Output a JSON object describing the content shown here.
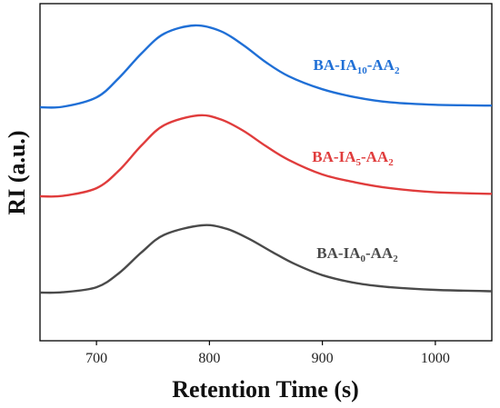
{
  "chart_data": {
    "type": "line",
    "xlabel": "Retention Time (s)",
    "ylabel": "RI (a.u.)",
    "xlim": [
      650,
      1050
    ],
    "xticks": [
      700,
      800,
      900,
      1000
    ],
    "y_ticks_shown": false,
    "grid": false,
    "legend": "inline labels next to curves",
    "series": [
      {
        "name": "BA-IA10-AA2",
        "label_base": "BA-IA",
        "label_sub1": "10",
        "label_mid": "-AA",
        "label_sub2": "2",
        "color": "#1f6fd6",
        "baseline": 0,
        "offset": 2.0,
        "peak_x": 787,
        "x": [
          650,
          670,
          700,
          720,
          740,
          760,
          787,
          810,
          830,
          850,
          870,
          900,
          930,
          960,
          1000,
          1050
        ],
        "y": [
          0.0,
          0.005,
          0.12,
          0.36,
          0.66,
          0.9,
          1.0,
          0.93,
          0.76,
          0.55,
          0.38,
          0.22,
          0.12,
          0.06,
          0.03,
          0.02
        ]
      },
      {
        "name": "BA-IA5-AA2",
        "label_base": "BA-IA",
        "label_sub1": "5",
        "label_mid": "-AA",
        "label_sub2": "2",
        "color": "#e03c3c",
        "offset": 1.0,
        "peak_x": 790,
        "x": [
          650,
          670,
          700,
          720,
          740,
          760,
          790,
          810,
          830,
          850,
          870,
          900,
          930,
          960,
          1000,
          1050
        ],
        "y": [
          0.0,
          0.005,
          0.1,
          0.32,
          0.63,
          0.88,
          1.0,
          0.95,
          0.81,
          0.62,
          0.45,
          0.27,
          0.17,
          0.1,
          0.05,
          0.03
        ]
      },
      {
        "name": "BA-IA0-AA2",
        "label_base": "BA-IA",
        "label_sub1": "0",
        "label_mid": "-AA",
        "label_sub2": "2",
        "color": "#4a4a4a",
        "offset": 0.0,
        "peak_x": 793,
        "x": [
          650,
          670,
          700,
          720,
          740,
          760,
          793,
          815,
          835,
          855,
          875,
          900,
          930,
          960,
          1000,
          1050
        ],
        "y": [
          0.0,
          0.005,
          0.08,
          0.29,
          0.6,
          0.86,
          1.0,
          0.95,
          0.8,
          0.61,
          0.43,
          0.26,
          0.14,
          0.08,
          0.04,
          0.02
        ]
      }
    ]
  }
}
